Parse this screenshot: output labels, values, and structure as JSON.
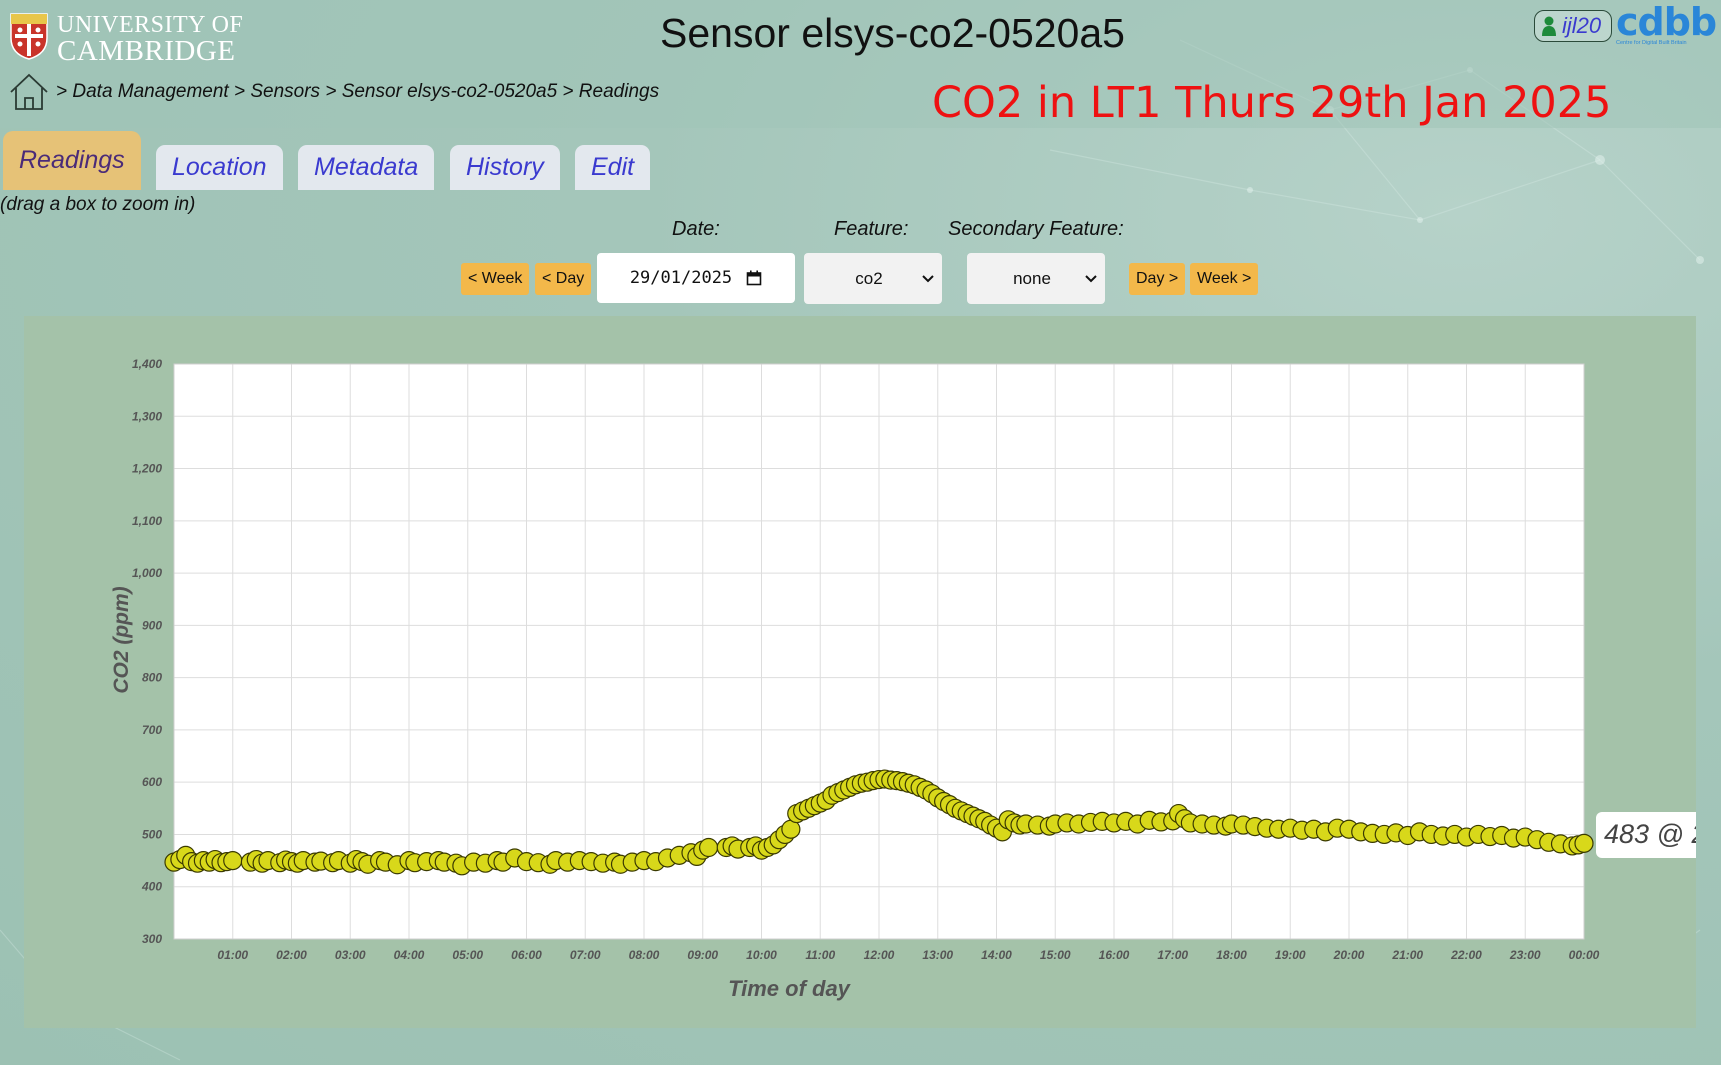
{
  "header": {
    "logo_line1": "UNIVERSITY OF",
    "logo_line2": "CAMBRIDGE",
    "title": "Sensor elsys-co2-0520a5",
    "user": "ijl20",
    "brand": "cdbb",
    "brand_sub": "Centre for Digital Built Britain"
  },
  "breadcrumb": {
    "text": " > Data Management > Sensors > Sensor elsys-co2-0520a5 > Readings"
  },
  "annotation": "CO2 in LT1 Thurs 29th Jan 2025",
  "tabs": [
    "Readings",
    "Location",
    "Metadata",
    "History",
    "Edit"
  ],
  "hint": "(drag a box to zoom in)",
  "controls": {
    "date_label": "Date:",
    "feature_label": "Feature:",
    "secondary_label": "Secondary Feature:",
    "prev_week": "< Week",
    "prev_day": "< Day",
    "date_value": "29/01/2025",
    "feature_value": "co2",
    "secondary_value": "none",
    "next_day": "Day >",
    "next_week": "Week >"
  },
  "colors": {
    "point_fill": "#d8d81a",
    "point_stroke": "#3a3a00",
    "button": "#f3b84a",
    "annotation": "#ee1111",
    "active_tab": "#e6c277"
  },
  "tooltip": "483 @ 2",
  "chart_data": {
    "type": "scatter",
    "xlabel": "Time of day",
    "ylabel": "CO2 (ppm)",
    "x_unit": "hour",
    "xlim": [
      0,
      24
    ],
    "ylim": [
      300,
      1400
    ],
    "y_ticks": [
      300,
      400,
      500,
      600,
      700,
      800,
      900,
      1000,
      1100,
      1200,
      1300,
      1400
    ],
    "y_tick_labels": [
      "300",
      "400",
      "500",
      "600",
      "700",
      "800",
      "900",
      "1,000",
      "1,100",
      "1,200",
      "1,300",
      "1,400"
    ],
    "x_tick_labels": [
      "01:00",
      "02:00",
      "03:00",
      "04:00",
      "05:00",
      "06:00",
      "07:00",
      "08:00",
      "09:00",
      "10:00",
      "11:00",
      "12:00",
      "13:00",
      "14:00",
      "15:00",
      "16:00",
      "17:00",
      "18:00",
      "19:00",
      "20:00",
      "21:00",
      "22:00",
      "23:00",
      "00:00"
    ],
    "grid": true,
    "points": [
      [
        0.0,
        447
      ],
      [
        0.1,
        452
      ],
      [
        0.2,
        460
      ],
      [
        0.3,
        448
      ],
      [
        0.4,
        445
      ],
      [
        0.5,
        450
      ],
      [
        0.6,
        447
      ],
      [
        0.7,
        452
      ],
      [
        0.8,
        446
      ],
      [
        0.9,
        448
      ],
      [
        1.0,
        450
      ],
      [
        1.3,
        447
      ],
      [
        1.4,
        452
      ],
      [
        1.5,
        445
      ],
      [
        1.6,
        450
      ],
      [
        1.8,
        446
      ],
      [
        1.9,
        451
      ],
      [
        2.0,
        448
      ],
      [
        2.1,
        445
      ],
      [
        2.2,
        450
      ],
      [
        2.4,
        447
      ],
      [
        2.5,
        449
      ],
      [
        2.7,
        446
      ],
      [
        2.8,
        450
      ],
      [
        3.0,
        445
      ],
      [
        3.1,
        452
      ],
      [
        3.2,
        448
      ],
      [
        3.3,
        443
      ],
      [
        3.5,
        450
      ],
      [
        3.6,
        447
      ],
      [
        3.8,
        442
      ],
      [
        4.0,
        450
      ],
      [
        4.1,
        446
      ],
      [
        4.3,
        448
      ],
      [
        4.5,
        450
      ],
      [
        4.6,
        447
      ],
      [
        4.8,
        445
      ],
      [
        4.9,
        440
      ],
      [
        5.1,
        447
      ],
      [
        5.3,
        445
      ],
      [
        5.5,
        450
      ],
      [
        5.6,
        447
      ],
      [
        5.8,
        455
      ],
      [
        6.0,
        448
      ],
      [
        6.2,
        446
      ],
      [
        6.4,
        443
      ],
      [
        6.5,
        450
      ],
      [
        6.7,
        447
      ],
      [
        6.9,
        450
      ],
      [
        7.1,
        448
      ],
      [
        7.3,
        445
      ],
      [
        7.5,
        447
      ],
      [
        7.6,
        443
      ],
      [
        7.8,
        447
      ],
      [
        8.0,
        450
      ],
      [
        8.2,
        448
      ],
      [
        8.4,
        455
      ],
      [
        8.6,
        460
      ],
      [
        8.8,
        465
      ],
      [
        8.9,
        458
      ],
      [
        9.0,
        470
      ],
      [
        9.1,
        475
      ],
      [
        9.4,
        475
      ],
      [
        9.5,
        478
      ],
      [
        9.6,
        472
      ],
      [
        9.8,
        475
      ],
      [
        9.9,
        478
      ],
      [
        10.0,
        470
      ],
      [
        10.1,
        475
      ],
      [
        10.2,
        480
      ],
      [
        10.3,
        490
      ],
      [
        10.4,
        500
      ],
      [
        10.5,
        510
      ],
      [
        10.6,
        540
      ],
      [
        10.7,
        545
      ],
      [
        10.8,
        550
      ],
      [
        10.9,
        555
      ],
      [
        11.0,
        560
      ],
      [
        11.1,
        565
      ],
      [
        11.2,
        575
      ],
      [
        11.3,
        580
      ],
      [
        11.4,
        585
      ],
      [
        11.5,
        590
      ],
      [
        11.6,
        595
      ],
      [
        11.7,
        598
      ],
      [
        11.8,
        600
      ],
      [
        11.9,
        603
      ],
      [
        12.0,
        605
      ],
      [
        12.1,
        606
      ],
      [
        12.2,
        604
      ],
      [
        12.3,
        603
      ],
      [
        12.4,
        601
      ],
      [
        12.5,
        598
      ],
      [
        12.6,
        595
      ],
      [
        12.7,
        590
      ],
      [
        12.8,
        585
      ],
      [
        12.9,
        578
      ],
      [
        13.0,
        570
      ],
      [
        13.1,
        563
      ],
      [
        13.2,
        557
      ],
      [
        13.3,
        550
      ],
      [
        13.4,
        545
      ],
      [
        13.5,
        540
      ],
      [
        13.6,
        535
      ],
      [
        13.7,
        530
      ],
      [
        13.8,
        525
      ],
      [
        13.9,
        518
      ],
      [
        14.0,
        512
      ],
      [
        14.1,
        505
      ],
      [
        14.2,
        528
      ],
      [
        14.3,
        522
      ],
      [
        14.4,
        518
      ],
      [
        14.5,
        520
      ],
      [
        14.7,
        518
      ],
      [
        14.9,
        516
      ],
      [
        15.0,
        520
      ],
      [
        15.2,
        522
      ],
      [
        15.4,
        520
      ],
      [
        15.6,
        523
      ],
      [
        15.8,
        525
      ],
      [
        16.0,
        522
      ],
      [
        16.2,
        525
      ],
      [
        16.4,
        520
      ],
      [
        16.6,
        527
      ],
      [
        16.8,
        524
      ],
      [
        17.0,
        526
      ],
      [
        17.1,
        540
      ],
      [
        17.2,
        530
      ],
      [
        17.3,
        522
      ],
      [
        17.5,
        520
      ],
      [
        17.7,
        518
      ],
      [
        17.9,
        516
      ],
      [
        18.0,
        520
      ],
      [
        18.2,
        518
      ],
      [
        18.4,
        515
      ],
      [
        18.6,
        512
      ],
      [
        18.8,
        510
      ],
      [
        19.0,
        512
      ],
      [
        19.2,
        508
      ],
      [
        19.4,
        510
      ],
      [
        19.6,
        505
      ],
      [
        19.8,
        512
      ],
      [
        20.0,
        510
      ],
      [
        20.2,
        505
      ],
      [
        20.4,
        502
      ],
      [
        20.6,
        500
      ],
      [
        20.8,
        503
      ],
      [
        21.0,
        498
      ],
      [
        21.2,
        505
      ],
      [
        21.4,
        500
      ],
      [
        21.6,
        497
      ],
      [
        21.8,
        500
      ],
      [
        22.0,
        495
      ],
      [
        22.2,
        500
      ],
      [
        22.4,
        496
      ],
      [
        22.6,
        498
      ],
      [
        22.8,
        493
      ],
      [
        23.0,
        495
      ],
      [
        23.2,
        490
      ],
      [
        23.4,
        485
      ],
      [
        23.6,
        482
      ],
      [
        23.8,
        478
      ],
      [
        23.9,
        480
      ],
      [
        24.0,
        483
      ]
    ]
  }
}
